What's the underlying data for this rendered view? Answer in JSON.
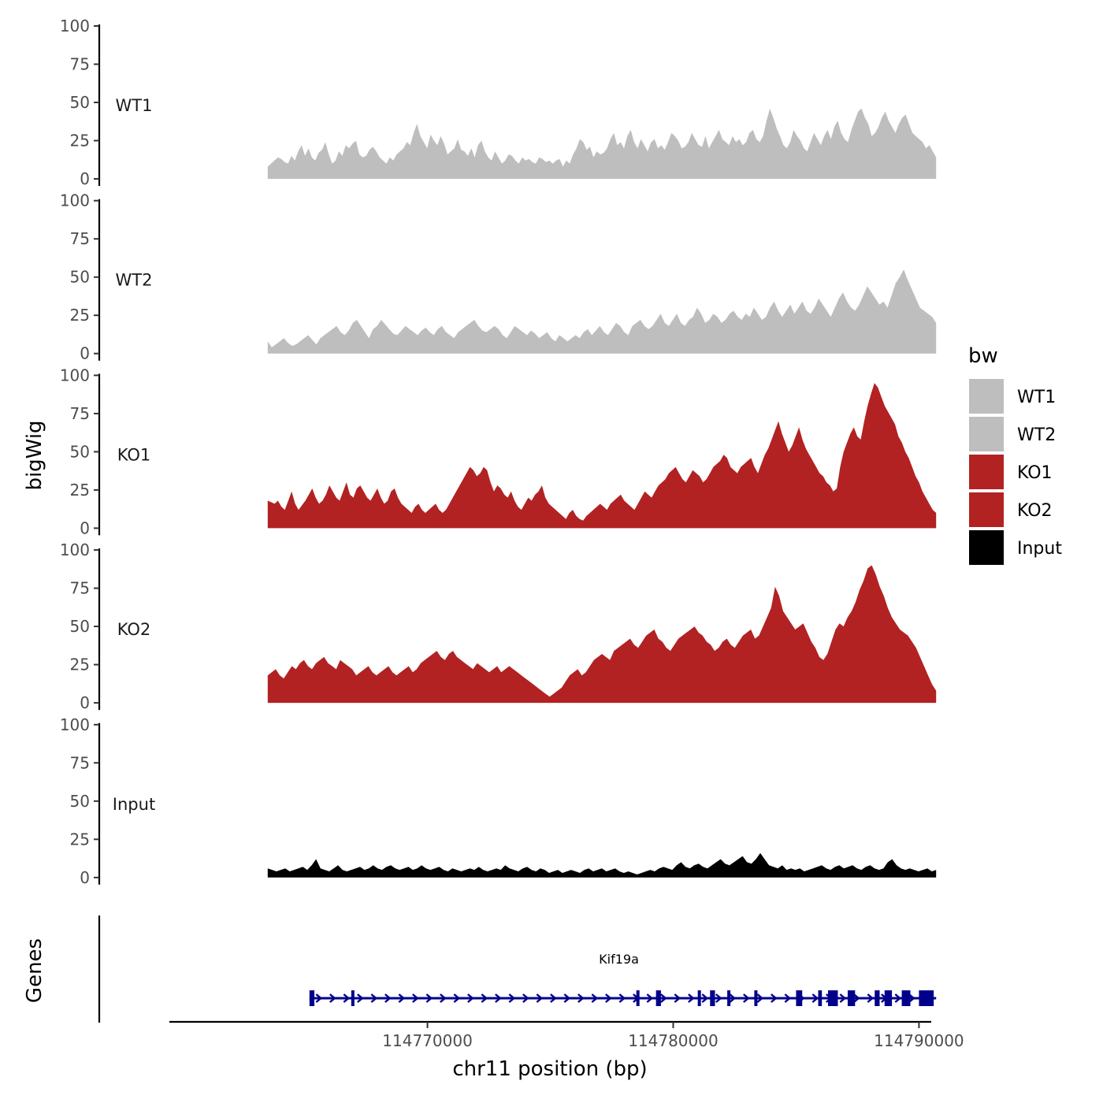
{
  "chart_data": {
    "type": "area",
    "ylabel": "bigWig",
    "genes_ylabel": "Genes",
    "xlabel": "chr11 position (bp)",
    "ylim": [
      0,
      100
    ],
    "yticks": [
      "0",
      "25",
      "50",
      "75",
      "100"
    ],
    "xlim": [
      114759500,
      114790500
    ],
    "xticks": [
      {
        "value": 114770000,
        "label": "114770000"
      },
      {
        "value": 114780000,
        "label": "114780000"
      },
      {
        "value": 114790000,
        "label": "114790000"
      }
    ],
    "x_start": 114763500,
    "x_end": 114790700,
    "legend": {
      "title": "bw",
      "placement": "right",
      "items": [
        {
          "label": "WT1",
          "color": "#bebebe"
        },
        {
          "label": "WT2",
          "color": "#bebebe"
        },
        {
          "label": "KO1",
          "color": "#b22222"
        },
        {
          "label": "KO2",
          "color": "#b22222"
        },
        {
          "label": "Input",
          "color": "#000000"
        }
      ]
    },
    "series": [
      {
        "name": "WT1",
        "color": "#bebebe",
        "values": [
          8,
          10,
          12,
          14,
          13,
          11,
          10,
          15,
          12,
          18,
          22,
          15,
          20,
          14,
          12,
          17,
          19,
          24,
          16,
          10,
          12,
          18,
          15,
          22,
          20,
          23,
          25,
          16,
          14,
          15,
          19,
          21,
          18,
          14,
          12,
          10,
          14,
          12,
          16,
          18,
          20,
          24,
          22,
          30,
          36,
          28,
          24,
          20,
          29,
          25,
          22,
          28,
          23,
          16,
          18,
          20,
          26,
          19,
          18,
          15,
          20,
          14,
          22,
          25,
          18,
          14,
          12,
          18,
          14,
          10,
          12,
          16,
          15,
          12,
          10,
          14,
          12,
          13,
          11,
          10,
          14,
          13,
          11,
          12,
          10,
          12,
          13,
          8,
          12,
          10,
          16,
          20,
          26,
          24,
          19,
          21,
          14,
          18,
          16,
          17,
          20,
          26,
          30,
          22,
          24,
          20,
          28,
          32,
          24,
          20,
          26,
          22,
          18,
          24,
          26,
          20,
          22,
          19,
          24,
          30,
          28,
          25,
          20,
          21,
          24,
          30,
          26,
          22,
          21,
          28,
          20,
          24,
          28,
          32,
          26,
          24,
          22,
          28,
          24,
          26,
          22,
          24,
          30,
          32,
          26,
          24,
          28,
          38,
          46,
          40,
          33,
          28,
          22,
          20,
          24,
          32,
          28,
          25,
          20,
          18,
          24,
          30,
          26,
          22,
          28,
          32,
          26,
          34,
          38,
          30,
          26,
          24,
          32,
          38,
          44,
          46,
          40,
          36,
          28,
          30,
          34,
          40,
          44,
          38,
          34,
          30,
          36,
          40,
          42,
          36,
          30,
          28,
          26,
          24,
          20,
          22,
          18,
          14
        ]
      },
      {
        "name": "WT2",
        "color": "#bebebe",
        "values": [
          8,
          4,
          6,
          8,
          10,
          7,
          5,
          6,
          8,
          10,
          12,
          9,
          6,
          10,
          12,
          14,
          16,
          18,
          14,
          12,
          15,
          20,
          22,
          18,
          14,
          10,
          16,
          18,
          22,
          19,
          16,
          13,
          12,
          15,
          18,
          16,
          14,
          12,
          15,
          17,
          14,
          12,
          16,
          18,
          14,
          12,
          10,
          14,
          16,
          18,
          20,
          22,
          18,
          15,
          14,
          16,
          18,
          16,
          12,
          10,
          14,
          18,
          16,
          14,
          12,
          15,
          13,
          10,
          12,
          14,
          10,
          8,
          12,
          10,
          8,
          10,
          12,
          10,
          14,
          16,
          12,
          15,
          18,
          14,
          12,
          16,
          20,
          18,
          14,
          12,
          18,
          20,
          22,
          18,
          16,
          18,
          22,
          26,
          20,
          18,
          22,
          26,
          20,
          18,
          22,
          24,
          30,
          26,
          20,
          22,
          26,
          24,
          20,
          22,
          26,
          28,
          24,
          22,
          26,
          24,
          30,
          26,
          22,
          24,
          30,
          34,
          28,
          24,
          28,
          32,
          26,
          30,
          34,
          28,
          26,
          30,
          36,
          32,
          28,
          24,
          30,
          36,
          40,
          34,
          30,
          28,
          32,
          38,
          44,
          40,
          36,
          32,
          34,
          30,
          38,
          46,
          50,
          55,
          48,
          42,
          36,
          30,
          28,
          26,
          24,
          20
        ]
      },
      {
        "name": "KO1",
        "color": "#b22222",
        "values": [
          18,
          17,
          16,
          18,
          14,
          12,
          18,
          24,
          16,
          12,
          15,
          18,
          22,
          26,
          20,
          16,
          18,
          22,
          28,
          24,
          20,
          18,
          24,
          30,
          22,
          20,
          26,
          28,
          24,
          20,
          18,
          22,
          26,
          20,
          16,
          18,
          24,
          26,
          20,
          16,
          14,
          12,
          10,
          14,
          16,
          12,
          10,
          12,
          14,
          16,
          12,
          10,
          12,
          16,
          20,
          24,
          28,
          32,
          36,
          40,
          38,
          34,
          36,
          40,
          38,
          30,
          24,
          28,
          26,
          22,
          20,
          24,
          18,
          14,
          12,
          16,
          20,
          18,
          22,
          24,
          28,
          20,
          16,
          14,
          12,
          10,
          8,
          6,
          10,
          12,
          8,
          6,
          5,
          8,
          10,
          12,
          14,
          16,
          14,
          12,
          16,
          18,
          20,
          22,
          18,
          16,
          14,
          12,
          16,
          20,
          24,
          22,
          20,
          24,
          28,
          30,
          32,
          36,
          38,
          40,
          36,
          32,
          30,
          34,
          38,
          36,
          34,
          30,
          32,
          36,
          40,
          42,
          44,
          48,
          46,
          40,
          38,
          36,
          40,
          42,
          44,
          46,
          40,
          36,
          42,
          48,
          52,
          58,
          64,
          70,
          62,
          56,
          50,
          54,
          60,
          66,
          58,
          52,
          48,
          44,
          40,
          36,
          34,
          30,
          28,
          24,
          26,
          40,
          50,
          56,
          62,
          66,
          60,
          58,
          70,
          80,
          88,
          95,
          92,
          86,
          80,
          76,
          72,
          68,
          60,
          56,
          50,
          46,
          40,
          34,
          30,
          24,
          20,
          16,
          12,
          10
        ]
      },
      {
        "name": "KO2",
        "color": "#b22222",
        "values": [
          18,
          20,
          22,
          18,
          16,
          20,
          24,
          22,
          26,
          28,
          24,
          22,
          26,
          28,
          30,
          26,
          24,
          22,
          28,
          26,
          24,
          22,
          18,
          20,
          22,
          24,
          20,
          18,
          20,
          22,
          24,
          20,
          18,
          20,
          22,
          24,
          20,
          22,
          26,
          28,
          30,
          32,
          34,
          30,
          28,
          32,
          34,
          30,
          28,
          26,
          24,
          22,
          26,
          24,
          22,
          20,
          22,
          24,
          20,
          22,
          24,
          22,
          20,
          18,
          16,
          14,
          12,
          10,
          8,
          6,
          4,
          6,
          8,
          10,
          14,
          18,
          20,
          22,
          18,
          20,
          24,
          28,
          30,
          32,
          30,
          28,
          34,
          36,
          38,
          40,
          42,
          38,
          36,
          40,
          44,
          46,
          48,
          42,
          40,
          36,
          34,
          38,
          42,
          44,
          46,
          48,
          50,
          46,
          44,
          40,
          38,
          34,
          36,
          40,
          42,
          38,
          36,
          40,
          44,
          46,
          48,
          42,
          44,
          50,
          56,
          62,
          76,
          70,
          60,
          56,
          52,
          48,
          50,
          52,
          46,
          40,
          36,
          30,
          28,
          32,
          40,
          48,
          52,
          50,
          56,
          60,
          66,
          74,
          80,
          88,
          90,
          84,
          76,
          70,
          62,
          56,
          52,
          48,
          46,
          44,
          40,
          36,
          30,
          24,
          18,
          12,
          8
        ]
      },
      {
        "name": "Input",
        "color": "#000000",
        "values": [
          6,
          5,
          4,
          5,
          6,
          4,
          5,
          6,
          7,
          5,
          8,
          12,
          6,
          5,
          4,
          6,
          8,
          5,
          4,
          5,
          6,
          7,
          5,
          6,
          8,
          6,
          5,
          7,
          8,
          6,
          5,
          6,
          7,
          5,
          6,
          8,
          6,
          5,
          6,
          7,
          5,
          4,
          6,
          5,
          4,
          5,
          6,
          5,
          7,
          5,
          4,
          5,
          6,
          5,
          8,
          6,
          5,
          4,
          6,
          7,
          5,
          4,
          6,
          5,
          3,
          4,
          5,
          3,
          4,
          5,
          4,
          3,
          5,
          6,
          4,
          5,
          6,
          4,
          5,
          6,
          4,
          3,
          4,
          3,
          2,
          3,
          4,
          5,
          4,
          6,
          7,
          6,
          5,
          8,
          10,
          7,
          6,
          8,
          9,
          7,
          6,
          8,
          10,
          12,
          9,
          8,
          10,
          12,
          14,
          10,
          9,
          12,
          16,
          12,
          8,
          7,
          6,
          8,
          5,
          6,
          5,
          6,
          4,
          5,
          6,
          7,
          8,
          6,
          5,
          7,
          8,
          6,
          7,
          8,
          6,
          5,
          7,
          8,
          6,
          5,
          6,
          10,
          12,
          8,
          6,
          5,
          6,
          5,
          4,
          5,
          6,
          4,
          5
        ]
      }
    ],
    "genes": [
      {
        "name": "Kif19a",
        "strand": "+",
        "color": "#00008b",
        "start": 114765200,
        "end": 114790700,
        "exons": [
          {
            "start": 114765200,
            "end": 114765400
          },
          {
            "start": 114766900,
            "end": 114767000
          },
          {
            "start": 114778500,
            "end": 114778600
          },
          {
            "start": 114779300,
            "end": 114779500
          },
          {
            "start": 114781000,
            "end": 114781100
          },
          {
            "start": 114781500,
            "end": 114781700
          },
          {
            "start": 114782200,
            "end": 114782300
          },
          {
            "start": 114783300,
            "end": 114783400
          },
          {
            "start": 114785000,
            "end": 114785250
          },
          {
            "start": 114785900,
            "end": 114786050
          },
          {
            "start": 114786300,
            "end": 114786700
          },
          {
            "start": 114787100,
            "end": 114787400
          },
          {
            "start": 114788200,
            "end": 114788400
          },
          {
            "start": 114788600,
            "end": 114788900
          },
          {
            "start": 114789300,
            "end": 114789650
          },
          {
            "start": 114790000,
            "end": 114790600
          }
        ]
      }
    ]
  }
}
